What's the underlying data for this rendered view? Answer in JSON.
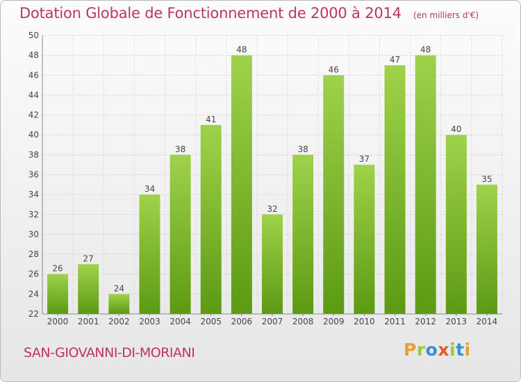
{
  "chart_data": {
    "type": "bar",
    "title": "Dotation Globale de Fonctionnement de 2000 à 2014",
    "unit": "(en milliers d'€)",
    "categories": [
      "2000",
      "2001",
      "2002",
      "2003",
      "2004",
      "2005",
      "2006",
      "2007",
      "2008",
      "2009",
      "2010",
      "2011",
      "2012",
      "2013",
      "2014"
    ],
    "values": [
      26,
      27,
      24,
      34,
      38,
      41,
      48,
      32,
      38,
      46,
      37,
      47,
      48,
      40,
      35
    ],
    "ylim": [
      22,
      50
    ],
    "yticks": [
      22,
      24,
      26,
      28,
      30,
      32,
      34,
      36,
      38,
      40,
      42,
      44,
      46,
      48,
      50
    ],
    "grid": true,
    "xlabel": "",
    "ylabel": ""
  },
  "footer": {
    "commune": "SAN-GIOVANNI-DI-MORIANI",
    "brand": "Proxiti",
    "brand_colors": [
      "#e8a030",
      "#9bc83a",
      "#3a8fd0",
      "#e05a2a",
      "#9bc83a",
      "#3a8fd0",
      "#e8a030"
    ]
  },
  "colors": {
    "bar_top": "#9fd24a",
    "bar_bottom": "#5c9a14",
    "title": "#c0306a"
  }
}
